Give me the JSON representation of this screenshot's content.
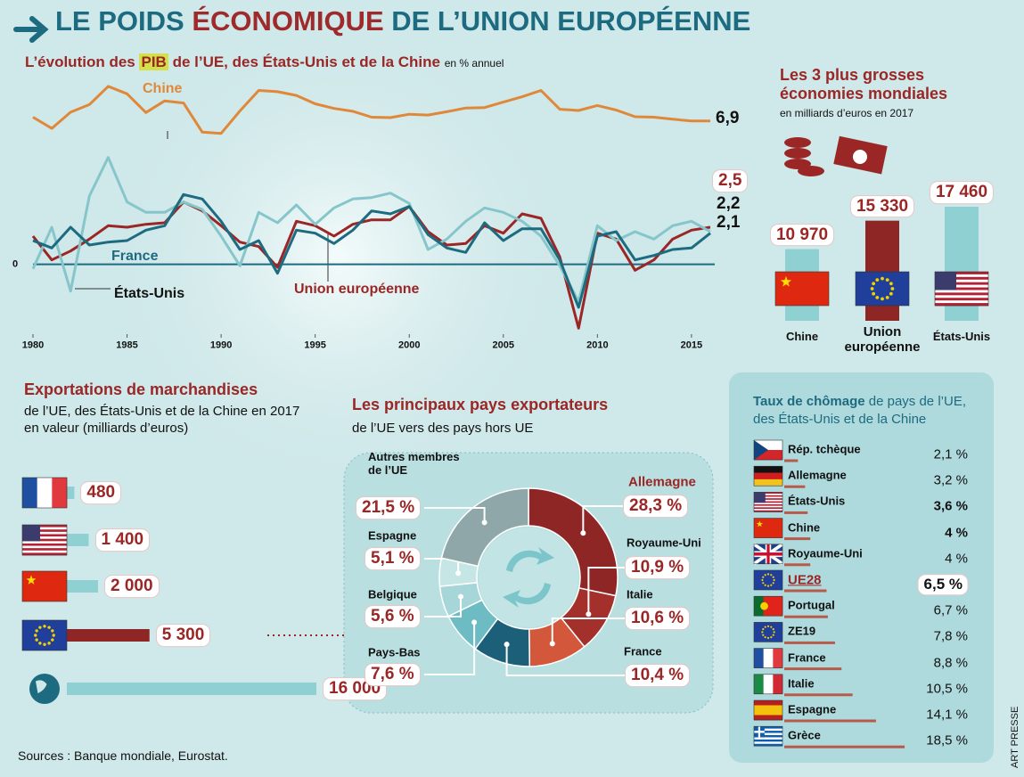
{
  "title": {
    "before": "LE POIDS",
    "highlight": "ÉCONOMIQUE",
    "after": "DE L’UNION EUROPÉENNE"
  },
  "chart_data": [
    {
      "type": "line",
      "title_before": "L’évolution des",
      "title_highlight": "PIB",
      "title_after": "de l’UE, des États-Unis et de la Chine",
      "subtitle": "en % annuel",
      "x": [
        1980,
        1981,
        1982,
        1983,
        1984,
        1985,
        1986,
        1987,
        1988,
        1989,
        1990,
        1991,
        1992,
        1993,
        1994,
        1995,
        1996,
        1997,
        1998,
        1999,
        2000,
        2001,
        2002,
        2003,
        2004,
        2005,
        2006,
        2007,
        2008,
        2009,
        2010,
        2011,
        2012,
        2013,
        2014,
        2015,
        2016
      ],
      "xlim": [
        1980,
        2016
      ],
      "xticks": [
        1980,
        1985,
        1990,
        1995,
        2000,
        2005,
        2010,
        2015
      ],
      "ylim": [
        -4.7,
        9.4
      ],
      "yticks": [
        0
      ],
      "y2lim": [
        0,
        18.8
      ],
      "series": [
        {
          "name": "Chine",
          "color": "#e0883a",
          "axis": "y2",
          "values": [
            7.8,
            5.1,
            9.0,
            10.8,
            15.2,
            13.4,
            8.9,
            11.7,
            11.2,
            4.2,
            3.9,
            9.3,
            14.2,
            13.9,
            13.0,
            11.0,
            9.9,
            9.2,
            7.8,
            7.7,
            8.5,
            8.3,
            9.1,
            10.0,
            10.1,
            11.4,
            12.7,
            14.2,
            9.7,
            9.4,
            10.6,
            9.5,
            7.9,
            7.8,
            7.3,
            6.9,
            6.9
          ],
          "value_labels": [
            null,
            null,
            null,
            null,
            null,
            null,
            null,
            null,
            null,
            null,
            null,
            null,
            null,
            null,
            null,
            null,
            null,
            null,
            null,
            null,
            null,
            null,
            null,
            null,
            null,
            null,
            null,
            null,
            null,
            null,
            null,
            null,
            null,
            null,
            null,
            null,
            "6,9"
          ]
        },
        {
          "name": "Union européenne",
          "color": "#9b2626",
          "values": [
            1.9,
            0.3,
            0.9,
            1.7,
            2.6,
            2.5,
            2.7,
            2.8,
            4.2,
            3.6,
            2.6,
            1.5,
            1.2,
            -0.2,
            2.9,
            2.6,
            1.9,
            2.7,
            3.0,
            3.0,
            3.9,
            2.2,
            1.3,
            1.4,
            2.6,
            2.1,
            3.4,
            3.1,
            0.5,
            -4.3,
            2.1,
            1.7,
            -0.4,
            0.3,
            1.7,
            2.3,
            2.5
          ],
          "value_labels": [
            null,
            null,
            null,
            null,
            null,
            null,
            null,
            null,
            null,
            null,
            null,
            null,
            null,
            null,
            null,
            null,
            null,
            null,
            null,
            null,
            null,
            null,
            null,
            null,
            null,
            null,
            null,
            null,
            null,
            null,
            null,
            null,
            null,
            null,
            null,
            null,
            "2,5"
          ]
        },
        {
          "name": "États-Unis",
          "color": "#86c6ca",
          "values": [
            -0.3,
            2.5,
            -1.8,
            4.6,
            7.2,
            4.2,
            3.5,
            3.5,
            4.2,
            3.7,
            1.9,
            -0.1,
            3.5,
            2.8,
            4.0,
            2.7,
            3.8,
            4.4,
            4.5,
            4.8,
            4.1,
            1.0,
            1.7,
            2.9,
            3.8,
            3.5,
            2.9,
            1.9,
            -0.1,
            -2.5,
            2.6,
            1.6,
            2.2,
            1.7,
            2.6,
            2.9,
            2.2
          ],
          "value_labels": [
            null,
            null,
            null,
            null,
            null,
            null,
            null,
            null,
            null,
            null,
            null,
            null,
            null,
            null,
            null,
            null,
            null,
            null,
            null,
            null,
            null,
            null,
            null,
            null,
            null,
            null,
            null,
            null,
            null,
            null,
            null,
            null,
            null,
            null,
            null,
            null,
            "2,2"
          ]
        },
        {
          "name": "France",
          "color": "#1d6b80",
          "values": [
            1.6,
            1.1,
            2.5,
            1.3,
            1.5,
            1.6,
            2.3,
            2.6,
            4.7,
            4.4,
            2.9,
            1.0,
            1.6,
            -0.6,
            2.3,
            2.1,
            1.4,
            2.3,
            3.6,
            3.4,
            3.9,
            2.0,
            1.1,
            0.8,
            2.8,
            1.6,
            2.4,
            2.4,
            0.3,
            -2.9,
            1.9,
            2.2,
            0.3,
            0.6,
            1.0,
            1.1,
            2.1
          ],
          "value_labels": [
            null,
            null,
            null,
            null,
            null,
            null,
            null,
            null,
            null,
            null,
            null,
            null,
            null,
            null,
            null,
            null,
            null,
            null,
            null,
            null,
            null,
            null,
            null,
            null,
            null,
            null,
            null,
            null,
            null,
            null,
            null,
            null,
            null,
            null,
            null,
            null,
            "2,1"
          ]
        }
      ]
    },
    {
      "type": "bar",
      "title": "Les 3 plus grosses économies mondiales",
      "subtitle": "en milliards d’euros en 2017",
      "categories": [
        "Chine",
        "Union européenne",
        "États-Unis"
      ],
      "values": [
        10970,
        15330,
        17460
      ],
      "value_labels": [
        "10 970",
        "15 330",
        "17 460"
      ],
      "colors": [
        "#8fd0d2",
        "#8e2626",
        "#8fd0d2"
      ]
    },
    {
      "type": "hbar",
      "title": "Exportations de marchandises",
      "subtitle": "de l’UE, des États-Unis et de la Chine en 2017 en valeur (milliards d’euros)",
      "categories": [
        null,
        null,
        null,
        null,
        null
      ],
      "values": [
        480,
        1400,
        2000,
        5300,
        16000
      ],
      "value_labels": [
        "480",
        "1 400",
        "2 000",
        "5 300",
        "16 000"
      ],
      "colors": [
        "#8fd0d2",
        "#8fd0d2",
        "#8fd0d2",
        "#8e2626",
        "#8fd0d2"
      ]
    },
    {
      "type": "donut",
      "title": "Les principaux pays exportateurs",
      "subtitle": "de l’UE vers des pays hors UE",
      "categories": [
        "Allemagne",
        "Royaume-Uni",
        "Italie",
        "France",
        "Pays-Bas",
        "Belgique",
        "Espagne",
        "Autres membres de l’UE"
      ],
      "values": [
        28.3,
        10.9,
        10.6,
        10.4,
        7.6,
        5.6,
        5.1,
        21.5
      ],
      "value_labels": [
        "28,3 %",
        "10,9 %",
        "10,6 %",
        "10,4 %",
        "7,6 %",
        "5,6 %",
        "5,1 %",
        "21,5 %"
      ],
      "colors": [
        "#8e2626",
        "#a3302b",
        "#d2573b",
        "#1b6078",
        "#6dbcc4",
        "#a6d6d8",
        "#c6e6e5",
        "#8fa7a8"
      ]
    },
    {
      "type": "hbar",
      "title_bold": "Taux de chômage",
      "title_rest": "de pays de l’UE, des États-Unis et de la Chine",
      "categories": [
        "Rép. tchèque",
        "Allemagne",
        "États-Unis",
        "Chine",
        "Royaume-Uni",
        "UE28",
        "Portugal",
        "ZE19",
        "France",
        "Italie",
        "Espagne",
        "Grèce"
      ],
      "values": [
        2.1,
        3.2,
        3.6,
        4,
        4,
        6.5,
        6.7,
        7.8,
        8.8,
        10.5,
        14.1,
        18.5
      ],
      "value_labels": [
        "2,1 %",
        "3,2 %",
        "3,6 %",
        "4 %",
        "4 %",
        "6,5 %",
        "6,7 %",
        "7,8 %",
        "8,8 %",
        "10,5 %",
        "14,1 %",
        "18,5 %"
      ],
      "color": "#b65a4a",
      "bold": [
        2,
        3,
        5
      ],
      "highlight": 5
    }
  ],
  "sources": "Sources : Banque mondiale, Eurostat.",
  "credit": "ART PRESSE"
}
